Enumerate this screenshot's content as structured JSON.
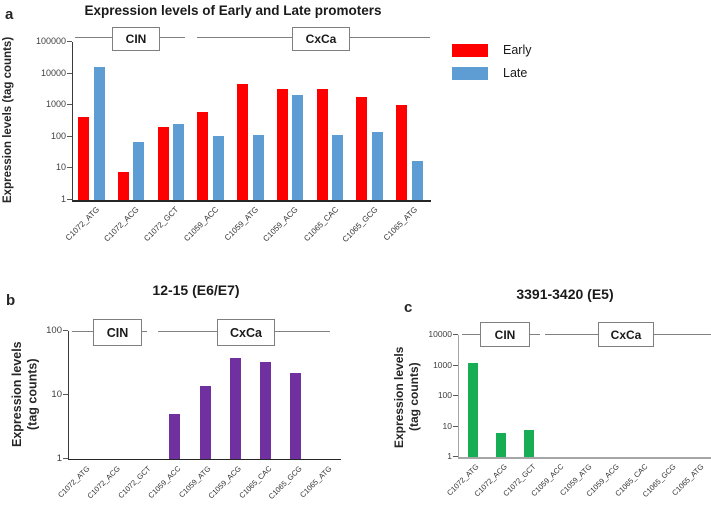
{
  "chart_data": [
    {
      "type": "bar",
      "panel_label": "a",
      "title": "Expression levels of Early and Late promoters",
      "ylabel": "Expression levels (tag counts)",
      "yscale": "log",
      "ylim": [
        1,
        100000
      ],
      "yticks": [
        1,
        10,
        100,
        1000,
        10000,
        100000
      ],
      "grid": false,
      "legend_position": "right",
      "categories": [
        "C1072_ATG",
        "C1072_ACG",
        "C1072_GCT",
        "C1059_ACC",
        "C1059_ATG",
        "C1059_ACG",
        "C1065_CAC",
        "C1065_GCG",
        "C1065_ATG"
      ],
      "group_labels": [
        {
          "label": "CIN",
          "categories_spanned": [
            "C1072_ATG",
            "C1072_ACG",
            "C1072_GCT"
          ]
        },
        {
          "label": "CxCa",
          "categories_spanned": [
            "C1059_ACC",
            "C1059_ATG",
            "C1059_ACG",
            "C1065_CAC",
            "C1065_GCG",
            "C1065_ATG"
          ]
        }
      ],
      "series": [
        {
          "name": "Early",
          "color": "#fe0000",
          "values": [
            420,
            8,
            200,
            600,
            4800,
            3200,
            3200,
            1800,
            1050
          ]
        },
        {
          "name": "Late",
          "color": "#5e9dd3",
          "values": [
            16500,
            70,
            260,
            110,
            115,
            2100,
            115,
            140,
            17
          ]
        }
      ]
    },
    {
      "type": "bar",
      "panel_label": "b",
      "title": "12-15 (E6/E7)",
      "ylabel": "Expression levels\n(tag counts)",
      "yscale": "log",
      "ylim": [
        1,
        100
      ],
      "yticks": [
        1,
        10,
        100
      ],
      "grid": false,
      "categories": [
        "C1072_ATG",
        "C1072_ACG",
        "C1072_GCT",
        "C1059_ACC",
        "C1059_ATG",
        "C1059_ACG",
        "C1065_CAC",
        "C1065_GCG",
        "C1065_ATG"
      ],
      "group_labels": [
        {
          "label": "CIN",
          "categories_spanned": [
            "C1072_ATG",
            "C1072_ACG",
            "C1072_GCT"
          ]
        },
        {
          "label": "CxCa",
          "categories_spanned": [
            "C1059_ACC",
            "C1059_ATG",
            "C1059_ACG",
            "C1065_CAC",
            "C1065_GCG",
            "C1065_ATG"
          ]
        }
      ],
      "series": [
        {
          "name": "12-15 (E6/E7)",
          "color": "#7030a0",
          "values": [
            0,
            0,
            0,
            5,
            14,
            38,
            33,
            22,
            0
          ]
        }
      ]
    },
    {
      "type": "bar",
      "panel_label": "c",
      "title": "3391-3420 (E5)",
      "ylabel": "Expression levels\n(tag counts)",
      "yscale": "log",
      "ylim": [
        1,
        10000
      ],
      "yticks": [
        1,
        10,
        100,
        1000,
        10000
      ],
      "grid": false,
      "categories": [
        "C1072_ATG",
        "C1072_ACG",
        "C1072_GCT",
        "C1059_ACC",
        "C1059_ATG",
        "C1059_ACG",
        "C1065_CAC",
        "C1065_GCG",
        "C1065_ATG"
      ],
      "group_labels": [
        {
          "label": "CIN",
          "categories_spanned": [
            "C1072_ATG",
            "C1072_ACG",
            "C1072_GCT"
          ]
        },
        {
          "label": "CxCa",
          "categories_spanned": [
            "C1059_ACC",
            "C1059_ATG",
            "C1059_ACG",
            "C1065_CAC",
            "C1065_GCG",
            "C1065_ATG"
          ]
        }
      ],
      "series": [
        {
          "name": "3391-3420 (E5)",
          "color": "#17ad54",
          "values": [
            1200,
            6,
            8,
            0,
            0,
            0,
            0,
            0,
            0
          ]
        }
      ]
    }
  ],
  "legend": {
    "items": [
      {
        "label": "Early",
        "color": "#fe0000"
      },
      {
        "label": "Late",
        "color": "#5e9dd3"
      }
    ]
  }
}
